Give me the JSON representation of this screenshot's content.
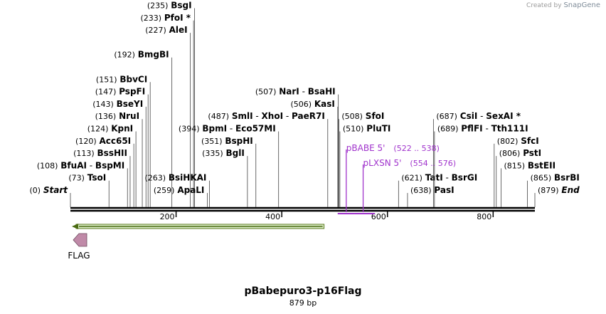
{
  "app": {
    "credit_prefix": "Created by",
    "credit_brand": "SnapGene"
  },
  "map": {
    "title": "pBabepuro3-p16Flag",
    "length_label": "879 bp",
    "total_bp": 879,
    "ticks": [
      200,
      400,
      600,
      800
    ],
    "labels": [
      {
        "id": "start",
        "pos": "(0)",
        "name": "Start",
        "italic": true,
        "site": 0,
        "row": 0,
        "side": "left"
      },
      {
        "id": "tsoi",
        "pos": "(73)",
        "name": "TsoI",
        "site": 73,
        "row": 1,
        "side": "left"
      },
      {
        "id": "bfuai",
        "pos": "(108)",
        "name": "BfuAI",
        "name2": "BspMI",
        "site": 108,
        "row": 2,
        "side": "left"
      },
      {
        "id": "bsshii",
        "pos": "(113)",
        "name": "BssHII",
        "site": 113,
        "row": 3,
        "side": "left"
      },
      {
        "id": "acc65i",
        "pos": "(120)",
        "name": "Acc65I",
        "site": 120,
        "row": 4,
        "side": "left"
      },
      {
        "id": "kpni",
        "pos": "(124)",
        "name": "KpnI",
        "site": 124,
        "row": 5,
        "side": "left"
      },
      {
        "id": "nrui",
        "pos": "(136)",
        "name": "NruI",
        "site": 136,
        "row": 6,
        "side": "left"
      },
      {
        "id": "bseyi",
        "pos": "(143)",
        "name": "BseYI",
        "site": 143,
        "row": 7,
        "side": "left"
      },
      {
        "id": "pspfi",
        "pos": "(147)",
        "name": "PspFI",
        "site": 147,
        "row": 8,
        "side": "left"
      },
      {
        "id": "bbvci",
        "pos": "(151)",
        "name": "BbvCI",
        "site": 151,
        "row": 9,
        "side": "left"
      },
      {
        "id": "bmgbi",
        "pos": "(192)",
        "name": "BmgBI",
        "site": 192,
        "row": 11,
        "side": "left"
      },
      {
        "id": "alei",
        "pos": "(227)",
        "name": "AleI",
        "site": 227,
        "row": 13,
        "side": "left"
      },
      {
        "id": "pfoi",
        "pos": "(233)",
        "name": "PfoI *",
        "site": 233,
        "row": 14,
        "side": "left"
      },
      {
        "id": "bsgi",
        "pos": "(235)",
        "name": "BsgI",
        "site": 235,
        "row": 15,
        "side": "left"
      },
      {
        "id": "apali",
        "pos": "(259)",
        "name": "ApaLI",
        "site": 259,
        "row": 0,
        "side": "left"
      },
      {
        "id": "bsihkai",
        "pos": "(263)",
        "name": "BsiHKAI",
        "site": 263,
        "row": 1,
        "side": "left"
      },
      {
        "id": "bgli",
        "pos": "(335)",
        "name": "BglI",
        "site": 335,
        "row": 3,
        "side": "left"
      },
      {
        "id": "bsphi",
        "pos": "(351)",
        "name": "BspHI",
        "site": 351,
        "row": 4,
        "side": "left"
      },
      {
        "id": "bpmi",
        "pos": "(394)",
        "name": "BpmI",
        "name2": "Eco57MI",
        "site": 394,
        "row": 5,
        "side": "left"
      },
      {
        "id": "smli",
        "pos": "(487)",
        "name": "SmlI",
        "name2": "XhoI",
        "name3": "PaeR7I",
        "site": 487,
        "row": 6,
        "side": "left"
      },
      {
        "id": "kasi",
        "pos": "(506)",
        "name": "KasI",
        "site": 506,
        "row": 7,
        "side": "left"
      },
      {
        "id": "nari",
        "pos": "(507)",
        "name": "NarI",
        "name2": "BsaHI",
        "site": 507,
        "row": 8,
        "side": "left"
      },
      {
        "id": "sfoi",
        "pos": "(508)",
        "name": "SfoI",
        "site": 508,
        "row": 6,
        "side": "right"
      },
      {
        "id": "pluti",
        "pos": "(510)",
        "name": "PluTI",
        "site": 510,
        "row": 5,
        "side": "right"
      },
      {
        "id": "pasi",
        "pos": "(638)",
        "name": "PasI",
        "site": 638,
        "row": 0,
        "side": "right"
      },
      {
        "id": "tati",
        "pos": "(621)",
        "name": "TatI",
        "name2": "BsrGI",
        "site": 621,
        "row": 1,
        "side": "right"
      },
      {
        "id": "pflfi",
        "pos": "(689)",
        "name": "PflFI",
        "name2": "Tth111I",
        "site": 689,
        "row": 5,
        "side": "right"
      },
      {
        "id": "csii",
        "pos": "(687)",
        "name": "CsiI",
        "name2": "SexAI *",
        "site": 687,
        "row": 6,
        "side": "right"
      },
      {
        "id": "sfci",
        "pos": "(802)",
        "name": "SfcI",
        "site": 802,
        "row": 4,
        "side": "right"
      },
      {
        "id": "psti",
        "pos": "(806)",
        "name": "PstI",
        "site": 806,
        "row": 3,
        "side": "right"
      },
      {
        "id": "bsteii",
        "pos": "(815)",
        "name": "BstEII",
        "site": 815,
        "row": 2,
        "side": "right"
      },
      {
        "id": "bsrbi",
        "pos": "(865)",
        "name": "BsrBI",
        "site": 865,
        "row": 1,
        "side": "right"
      },
      {
        "id": "end",
        "pos": "(879)",
        "name": "End",
        "italic": true,
        "site": 879,
        "row": 0,
        "side": "right"
      }
    ],
    "primers": [
      {
        "id": "pbabe",
        "name": "pBABE 5'",
        "range": "(522 .. 538)",
        "start": 522,
        "end": 538
      },
      {
        "id": "plxsn",
        "name": "pLXSN 5'",
        "range": "(554 .. 576)",
        "start": 554,
        "end": 576
      }
    ],
    "feature": {
      "name": "FLAG",
      "start": 0,
      "end": 480,
      "color": "#8bc34a"
    },
    "colors": {
      "primer": "#a033cc",
      "feature_arrow": "#c08aa8",
      "line": "#333333"
    }
  }
}
